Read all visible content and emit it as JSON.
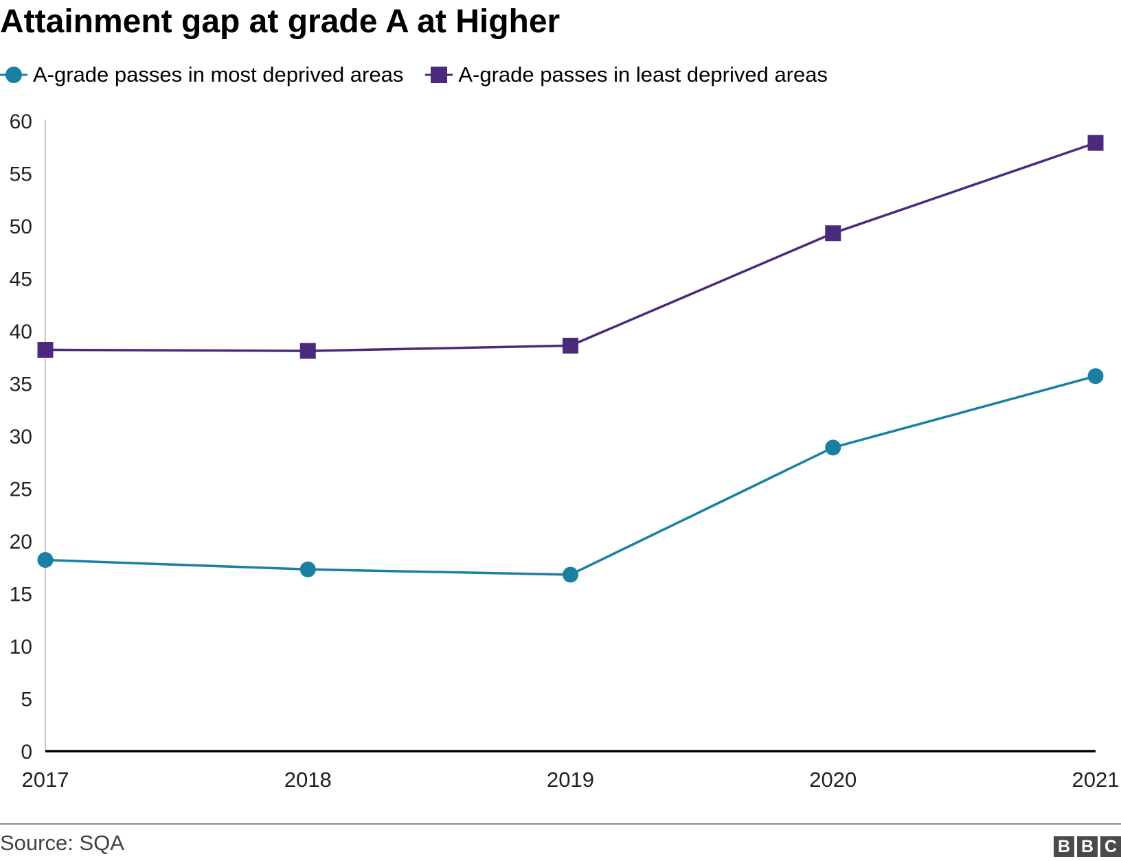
{
  "chart_data": {
    "type": "line",
    "title": "Attainment gap at grade A at Higher",
    "categories": [
      "2017",
      "2018",
      "2019",
      "2020",
      "2021"
    ],
    "series": [
      {
        "name": "A-grade passes in most deprived areas",
        "marker": "circle",
        "color": "#1a80a3",
        "values": [
          18.2,
          17.3,
          16.8,
          28.9,
          35.7
        ]
      },
      {
        "name": "A-grade passes in least deprived areas",
        "marker": "square",
        "color": "#4b2a7b",
        "values": [
          38.2,
          38.1,
          38.6,
          49.3,
          57.9
        ]
      }
    ],
    "ylim": [
      0,
      60
    ],
    "yticks": [
      0,
      5,
      10,
      15,
      20,
      25,
      30,
      35,
      40,
      45,
      50,
      55,
      60
    ],
    "xlabel": "",
    "ylabel": "",
    "grid": false,
    "legend": "top-left"
  },
  "footer": {
    "source": "Source: SQA",
    "logo": [
      "B",
      "B",
      "C"
    ]
  }
}
